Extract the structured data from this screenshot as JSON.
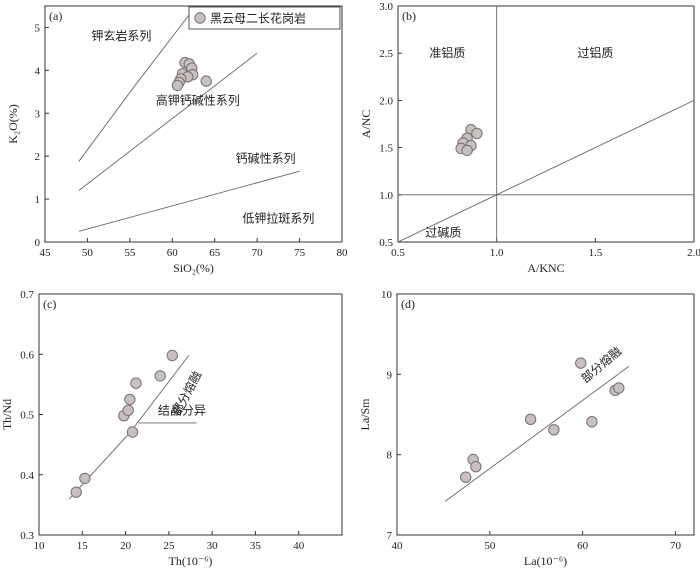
{
  "legend": {
    "label": "黑云母二长花岗岩"
  },
  "chart_data": [
    {
      "id": "a",
      "type": "scatter",
      "panel_label": "(a)",
      "xlabel": "SiO₂(%)",
      "ylabel": "K₂O(%)",
      "xlim": [
        45,
        80
      ],
      "ylim": [
        0,
        5.5
      ],
      "xticks": [
        "45",
        "50",
        "55",
        "60",
        "65",
        "70",
        "75",
        "80"
      ],
      "yticks": [
        "0",
        "1",
        "2",
        "3",
        "4",
        "5"
      ],
      "series": [
        {
          "name": "黑云母二长花岗岩",
          "points": [
            [
              61.5,
              4.18
            ],
            [
              62.0,
              4.15
            ],
            [
              62.3,
              4.05
            ],
            [
              61.2,
              3.92
            ],
            [
              62.4,
              3.9
            ],
            [
              61.8,
              3.85
            ],
            [
              61.0,
              3.8
            ],
            [
              60.8,
              3.72
            ],
            [
              60.6,
              3.65
            ],
            [
              64.0,
              3.75
            ]
          ]
        }
      ],
      "lines": [
        [
          [
            49,
            1.88
          ],
          [
            55.5,
            3.62
          ],
          [
            62,
            5.3
          ]
        ],
        [
          [
            49,
            1.2
          ],
          [
            70,
            4.4
          ]
        ],
        [
          [
            49,
            0.25
          ],
          [
            75,
            1.65
          ]
        ]
      ],
      "regions": [
        {
          "text": "钾玄岩系列",
          "x": 54,
          "y": 4.8
        },
        {
          "text": "高钾钙碱性系列",
          "x": 63,
          "y": 3.3
        },
        {
          "text": "钙碱性系列",
          "x": 71,
          "y": 1.95
        },
        {
          "text": "低钾拉斑系列",
          "x": 72.5,
          "y": 0.55
        }
      ]
    },
    {
      "id": "b",
      "type": "scatter",
      "panel_label": "(b)",
      "xlabel": "A/KNC",
      "ylabel": "A/NC",
      "xlim": [
        0.5,
        2.0
      ],
      "ylim": [
        0.5,
        3.0
      ],
      "xticks": [
        "0.5",
        "1.0",
        "1.5",
        "2.0"
      ],
      "yticks": [
        "0.5",
        "1.0",
        "1.5",
        "2.0",
        "2.5",
        "3.0"
      ],
      "series": [
        {
          "name": "黑云母二长花岗岩",
          "points": [
            [
              0.87,
              1.69
            ],
            [
              0.9,
              1.65
            ],
            [
              0.85,
              1.6
            ],
            [
              0.83,
              1.55
            ],
            [
              0.87,
              1.52
            ],
            [
              0.82,
              1.49
            ],
            [
              0.85,
              1.47
            ]
          ]
        }
      ],
      "lines": [
        [
          [
            1.0,
            0.5
          ],
          [
            1.0,
            3.0
          ]
        ],
        [
          [
            0.5,
            1.0
          ],
          [
            2.0,
            1.0
          ]
        ],
        [
          [
            0.5,
            0.5
          ],
          [
            2.0,
            2.0
          ]
        ]
      ],
      "regions": [
        {
          "text": "准铝质",
          "x": 0.75,
          "y": 2.5
        },
        {
          "text": "过铝质",
          "x": 1.5,
          "y": 2.5
        },
        {
          "text": "过碱质",
          "x": 0.73,
          "y": 0.6
        }
      ]
    },
    {
      "id": "c",
      "type": "scatter",
      "panel_label": "(c)",
      "xlabel": "Th(10⁻⁶)",
      "ylabel": "Th/Nd",
      "xlim": [
        10,
        45
      ],
      "ylim": [
        0.3,
        0.7
      ],
      "xticks": [
        "10",
        "15",
        "20",
        "25",
        "30",
        "35",
        "40"
      ],
      "yticks": [
        "0.3",
        "0.4",
        "0.5",
        "0.6",
        "0.7"
      ],
      "series": [
        {
          "name": "黑云母二长花岗岩",
          "points": [
            [
              14.3,
              0.371
            ],
            [
              15.3,
              0.394
            ],
            [
              19.8,
              0.498
            ],
            [
              20.3,
              0.507
            ],
            [
              20.5,
              0.525
            ],
            [
              20.8,
              0.471
            ],
            [
              21.2,
              0.552
            ],
            [
              24.0,
              0.564
            ],
            [
              25.4,
              0.598
            ]
          ]
        }
      ],
      "lines": [
        [
          [
            13.5,
            0.36
          ],
          [
            20.5,
            0.47
          ],
          [
            27.3,
            0.598
          ]
        ],
        [
          [
            21.5,
            0.486
          ],
          [
            28.2,
            0.486
          ]
        ]
      ],
      "annotations": [
        {
          "text": "部分熔融",
          "x": 27.5,
          "y": 0.532,
          "rotate": -62
        },
        {
          "text": "结晶分异",
          "x": 26.5,
          "y": 0.5,
          "rotate": 0
        }
      ]
    },
    {
      "id": "d",
      "type": "scatter",
      "panel_label": "(d)",
      "xlabel": "La(10⁻⁶)",
      "ylabel": "La/Sm",
      "xlim": [
        40,
        72
      ],
      "ylim": [
        7,
        10
      ],
      "xticks": [
        "40",
        "50",
        "60",
        "70"
      ],
      "yticks": [
        "7",
        "8",
        "9",
        "10"
      ],
      "series": [
        {
          "name": "黑云母二长花岗岩",
          "points": [
            [
              47.4,
              7.72
            ],
            [
              48.2,
              7.94
            ],
            [
              48.5,
              7.85
            ],
            [
              54.4,
              8.44
            ],
            [
              56.9,
              8.31
            ],
            [
              59.8,
              9.14
            ],
            [
              61.0,
              8.41
            ],
            [
              63.5,
              8.8
            ],
            [
              63.9,
              8.83
            ]
          ]
        }
      ],
      "lines": [
        [
          [
            45.2,
            7.42
          ],
          [
            65.0,
            9.1
          ]
        ]
      ],
      "annotations": [
        {
          "text": "部分熔融",
          "x": 62.3,
          "y": 9.08,
          "rotate": -40
        }
      ]
    }
  ]
}
